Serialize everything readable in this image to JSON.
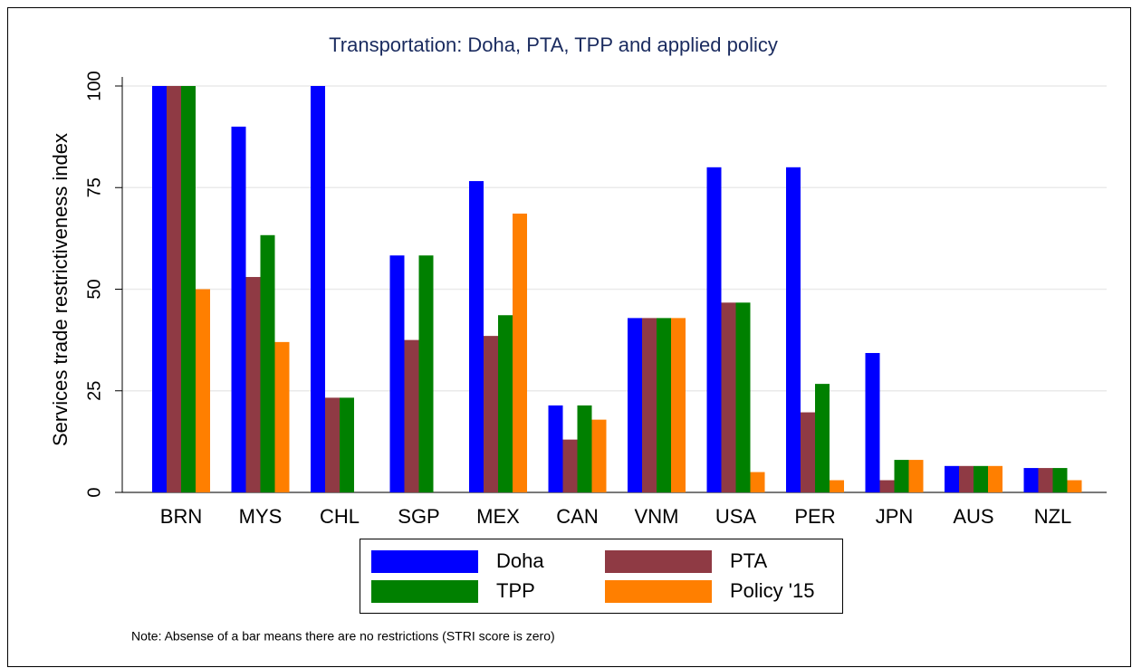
{
  "chart_data": {
    "type": "bar",
    "title": "Transportation: Doha, PTA, TPP and applied policy",
    "y_label": "Services trade restrictiveness index",
    "note": "Note: Absense of a bar means there are no restrictions (STRI score is zero)",
    "categories": [
      "BRN",
      "MYS",
      "CHL",
      "SGP",
      "MEX",
      "CAN",
      "VNM",
      "USA",
      "PER",
      "JPN",
      "AUS",
      "NZL"
    ],
    "series": [
      {
        "name": "Doha",
        "color": "#0000ff",
        "values": [
          100,
          90,
          100,
          58.3,
          76.6,
          21.4,
          42.9,
          80,
          80,
          34.3,
          6.5,
          6
        ]
      },
      {
        "name": "PTA",
        "color": "#8f3a44",
        "values": [
          100,
          53,
          23.3,
          37.5,
          38.5,
          13,
          42.9,
          46.7,
          19.7,
          3,
          6.5,
          6
        ]
      },
      {
        "name": "TPP",
        "color": "#008000",
        "values": [
          100,
          63.3,
          23.3,
          58.3,
          43.6,
          21.4,
          42.9,
          46.7,
          26.7,
          8,
          6.5,
          6
        ]
      },
      {
        "name": "Policy '15",
        "color": "#ff7f00",
        "values": [
          50,
          37,
          0,
          0,
          68.6,
          17.9,
          42.9,
          5,
          3,
          8,
          6.5,
          3
        ]
      }
    ],
    "ylim": [
      0,
      100
    ],
    "yticks": [
      0,
      25,
      50,
      75,
      100
    ],
    "grid": true
  }
}
